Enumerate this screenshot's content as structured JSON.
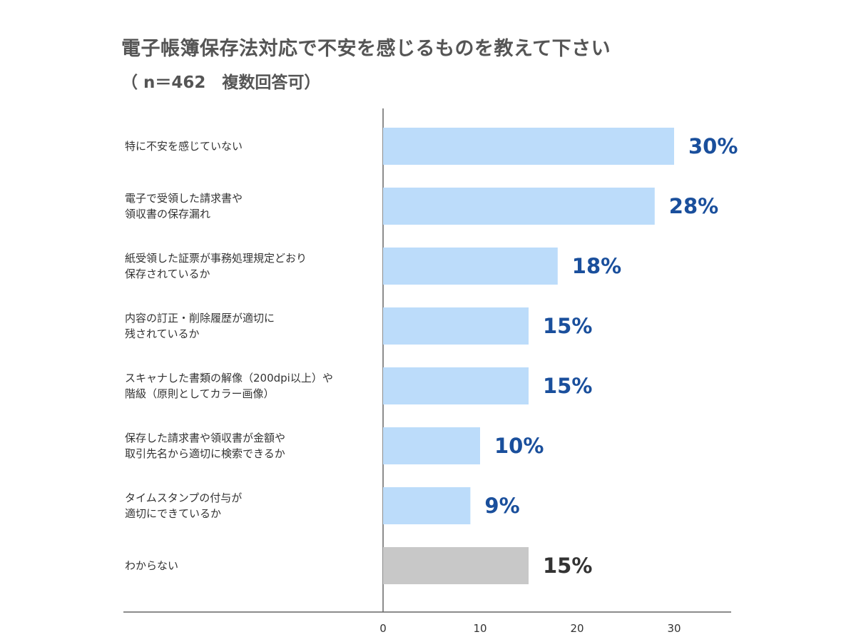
{
  "colors": {
    "bar": "#bcdcfa",
    "bar_other": "#c8c8c8",
    "value_text": "#1a4f9c",
    "value_text_other": "#333333",
    "axis": "#666666"
  },
  "chart_data": {
    "type": "bar",
    "orientation": "horizontal",
    "title": "電子帳簿保存法対応で不安を感じるものを教えて下さい",
    "subtitle": "（ n＝462　複数回答可）",
    "categories": [
      [
        "特に不安を感じていない"
      ],
      [
        "電子で受領した請求書や",
        "領収書の保存漏れ"
      ],
      [
        "紙受領した証票が事務処理規定どおり",
        "保存されているか"
      ],
      [
        "内容の訂正・削除履歴が適切に",
        "残されているか"
      ],
      [
        "スキャナした書類の解像（200dpi以上）や",
        "階級（原則としてカラー画像）"
      ],
      [
        "保存した請求書や領収書が金額や",
        "取引先名から適切に検索できるか"
      ],
      [
        "タイムスタンプの付与が",
        "適切にできているか"
      ],
      [
        "わからない"
      ]
    ],
    "values": [
      30,
      28,
      18,
      15,
      15,
      10,
      9,
      15
    ],
    "value_labels": [
      "30%",
      "28%",
      "18%",
      "15%",
      "15%",
      "10%",
      "9%",
      "15%"
    ],
    "highlight_other_index": 7,
    "xticks": [
      0,
      10,
      20,
      30
    ],
    "xlim": [
      0,
      36
    ],
    "grid": false,
    "legend": "none"
  }
}
